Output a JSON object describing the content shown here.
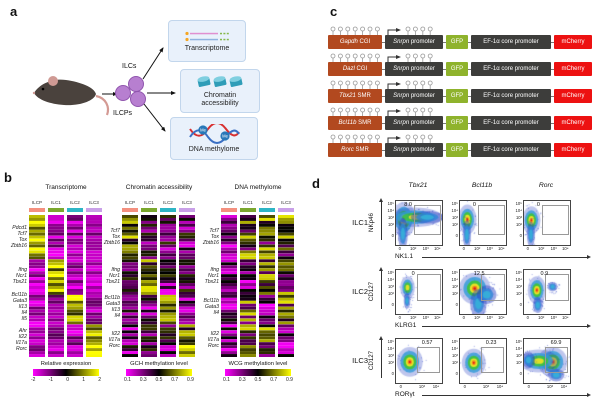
{
  "figure": {
    "a": "a",
    "b": "b",
    "c": "c",
    "d": "d"
  },
  "panel_a": {
    "ilcs_label": "ILCs",
    "ilcps_label": "ILCPs",
    "me_tag": "Me",
    "boxes": [
      {
        "label": "Transcriptome",
        "icon": "rna-strands-icon"
      },
      {
        "label": "Chromatin accessibility",
        "icon": "nucleosomes-icon"
      },
      {
        "label": "DNA methylome",
        "icon": "dna-helix-icon"
      }
    ]
  },
  "panel_b": {
    "column_labels": [
      "ILCP",
      "ILC1",
      "ILC2",
      "ILC3"
    ],
    "column_colors": [
      "#f4907f",
      "#7aa72e",
      "#2db5c5",
      "#c9a0e8"
    ],
    "heatmaps": [
      {
        "title": "Transcriptome",
        "mode": "expression",
        "colorbar_label": "Relative expression",
        "colorbar_ticks": [
          "-2",
          "-1",
          "0",
          "1",
          "2"
        ],
        "gene_groups": [
          [
            "Pdcd1",
            "Tcf7",
            "Tox",
            "Zbtb16"
          ],
          [
            "Ifng",
            "Ncr1",
            "Tbx21"
          ],
          [
            "Bcl11b",
            "Gata3",
            "Il13",
            "Il4",
            "Il5"
          ],
          [
            "Ahr",
            "Il22",
            "Il17a",
            "Rorc"
          ]
        ]
      },
      {
        "title": "Chromatin accessibility",
        "mode": "accessibility",
        "colorbar_label": "GCH methylation level",
        "colorbar_ticks": [
          "0.1",
          "0.3",
          "0.5",
          "0.7",
          "0.9"
        ],
        "gene_groups": [
          [
            "Tcf7",
            "Tox",
            "Zbtb16"
          ],
          [
            "Ifng",
            "Ncr1",
            "Tbx21"
          ],
          [
            "Bcl11b",
            "Gata3",
            "Il13",
            "Il4"
          ],
          [
            "Il22",
            "Il17a",
            "Rorc"
          ]
        ]
      },
      {
        "title": "DNA methylome",
        "mode": "methylome",
        "colorbar_label": "WCG methylation level",
        "colorbar_ticks": [
          "0.1",
          "0.3",
          "0.5",
          "0.7",
          "0.9"
        ],
        "gene_groups": [
          [
            "Tcf7",
            "Tox",
            "Zbtb16"
          ],
          [
            "Ifng",
            "Ncr1",
            "Tbx21"
          ],
          [
            "Bcl11b",
            "Gata3",
            "Il4"
          ],
          [
            "Il22",
            "Il17a",
            "Rorc"
          ]
        ]
      }
    ]
  },
  "panel_c": {
    "promoter_gene": "Snrpn",
    "promoter_word": "promoter",
    "gfp": "GFP",
    "ef1a": "EF-1α core promoter",
    "mcherry": "mCherry",
    "colors": {
      "region_box": "#b2491f",
      "promoter_box": "#3d3d3b",
      "gfp_box": "#8fb32c",
      "mcherry_box": "#ed1111"
    },
    "rows": [
      {
        "gene": "Gapdh",
        "region": "CGI"
      },
      {
        "gene": "Dazl",
        "region": "CGI"
      },
      {
        "gene": "Tbx21",
        "region": "SMR"
      },
      {
        "gene": "Bcl11b",
        "region": "SMR"
      },
      {
        "gene": "Rorc",
        "region": "SMR"
      }
    ]
  },
  "panel_d": {
    "col_titles": [
      "Tbx21",
      "Bcl11b",
      "Rorc"
    ],
    "rows": [
      {
        "row_label": "ILC1",
        "y_axis": "NKp46",
        "x_axis": "NK1.1",
        "y_ticks": [
          "10⁵",
          "10⁴",
          "10³",
          "10²",
          "0"
        ],
        "x_ticks": [
          "0",
          "10²",
          "10³",
          "10⁴"
        ],
        "plots": [
          {
            "pct": "8.0",
            "pct_x": 0.18,
            "gate": {
              "x": 0.4,
              "y": 0.1,
              "w": 0.54,
              "h": 0.62
            },
            "clusters": [
              {
                "x": 0.17,
                "y": 0.42,
                "rx": 0.13,
                "ry": 0.2,
                "hot": 2
              },
              {
                "x": 0.42,
                "y": 0.37,
                "rx": 0.3,
                "ry": 0.11,
                "hot": 1
              },
              {
                "x": 0.68,
                "y": 0.37,
                "rx": 0.2,
                "ry": 0.08,
                "hot": 0
              },
              {
                "x": 0.15,
                "y": 0.74,
                "rx": 0.06,
                "ry": 0.2,
                "hot": 0
              }
            ]
          },
          {
            "pct": "0",
            "pct_x": 0.28,
            "gate": {
              "x": 0.4,
              "y": 0.1,
              "w": 0.54,
              "h": 0.62
            },
            "clusters": [
              {
                "x": 0.16,
                "y": 0.42,
                "rx": 0.1,
                "ry": 0.17,
                "hot": 2
              },
              {
                "x": 0.15,
                "y": 0.76,
                "rx": 0.05,
                "ry": 0.18,
                "hot": 0
              }
            ]
          },
          {
            "pct": "0",
            "pct_x": 0.28,
            "gate": {
              "x": 0.4,
              "y": 0.1,
              "w": 0.54,
              "h": 0.62
            },
            "clusters": [
              {
                "x": 0.16,
                "y": 0.44,
                "rx": 0.1,
                "ry": 0.16,
                "hot": 2
              },
              {
                "x": 0.15,
                "y": 0.76,
                "rx": 0.05,
                "ry": 0.16,
                "hot": 0
              }
            ]
          }
        ]
      },
      {
        "row_label": "ILC2",
        "y_axis": "CD127",
        "x_axis": "KLRG1",
        "y_ticks": [
          "10⁵",
          "10⁴",
          "10³",
          "10²",
          "0"
        ],
        "x_ticks": [
          "0",
          "10²",
          "10³",
          "10⁴"
        ],
        "plots": [
          {
            "pct": "0",
            "pct_x": 0.34,
            "gate": {
              "x": 0.45,
              "y": 0.1,
              "w": 0.49,
              "h": 0.56
            },
            "clusters": [
              {
                "x": 0.25,
                "y": 0.4,
                "rx": 0.08,
                "ry": 0.13,
                "hot": 1
              },
              {
                "x": 0.24,
                "y": 0.7,
                "rx": 0.04,
                "ry": 0.1,
                "hot": 0
              }
            ]
          },
          {
            "pct": "12.5",
            "pct_x": 0.3,
            "gate": {
              "x": 0.45,
              "y": 0.1,
              "w": 0.49,
              "h": 0.56
            },
            "clusters": [
              {
                "x": 0.32,
                "y": 0.42,
                "rx": 0.17,
                "ry": 0.18,
                "hot": 2
              },
              {
                "x": 0.4,
                "y": 0.76,
                "rx": 0.1,
                "ry": 0.18,
                "hot": 0
              },
              {
                "x": 0.58,
                "y": 0.56,
                "rx": 0.12,
                "ry": 0.12,
                "hot": 0
              }
            ]
          },
          {
            "pct": "0.9",
            "pct_x": 0.36,
            "gate": {
              "x": 0.45,
              "y": 0.1,
              "w": 0.49,
              "h": 0.56
            },
            "clusters": [
              {
                "x": 0.28,
                "y": 0.46,
                "rx": 0.1,
                "ry": 0.16,
                "hot": 2
              },
              {
                "x": 0.62,
                "y": 0.38,
                "rx": 0.06,
                "ry": 0.06,
                "hot": 0
              },
              {
                "x": 0.3,
                "y": 0.8,
                "rx": 0.06,
                "ry": 0.1,
                "hot": 0
              }
            ]
          }
        ]
      },
      {
        "row_label": "ILC3",
        "y_axis": "CD127",
        "x_axis": "RORγt",
        "y_ticks": [
          "10⁵",
          "10⁴",
          "10³",
          "10²",
          "0"
        ],
        "x_ticks": [
          "0",
          "10³",
          "10⁴"
        ],
        "plots": [
          {
            "pct": "0.57",
            "pct_x": 0.56,
            "gate": {
              "x": 0.45,
              "y": 0.18,
              "w": 0.47,
              "h": 0.55
            },
            "clusters": [
              {
                "x": 0.3,
                "y": 0.52,
                "rx": 0.14,
                "ry": 0.17,
                "hot": 2
              }
            ]
          },
          {
            "pct": "0.23",
            "pct_x": 0.56,
            "gate": {
              "x": 0.45,
              "y": 0.18,
              "w": 0.47,
              "h": 0.55
            },
            "clusters": [
              {
                "x": 0.3,
                "y": 0.54,
                "rx": 0.13,
                "ry": 0.16,
                "hot": 2
              }
            ]
          },
          {
            "pct": "69.9",
            "pct_x": 0.58,
            "gate": {
              "x": 0.45,
              "y": 0.18,
              "w": 0.47,
              "h": 0.55
            },
            "clusters": [
              {
                "x": 0.62,
                "y": 0.52,
                "rx": 0.16,
                "ry": 0.17,
                "hot": 2
              },
              {
                "x": 0.32,
                "y": 0.5,
                "rx": 0.22,
                "ry": 0.13,
                "hot": 1
              },
              {
                "x": 0.1,
                "y": 0.48,
                "rx": 0.08,
                "ry": 0.1,
                "hot": 0
              },
              {
                "x": 0.7,
                "y": 0.82,
                "rx": 0.1,
                "ry": 0.08,
                "hot": 0
              }
            ]
          }
        ]
      }
    ]
  }
}
